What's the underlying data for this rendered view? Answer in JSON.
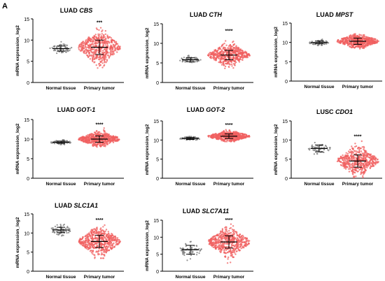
{
  "figure": {
    "panel_label": "A",
    "colors": {
      "normal": "#808080",
      "tumor": "#f06060",
      "axis": "#000000",
      "errorbar": "#000000"
    }
  },
  "chart_data": [
    {
      "type": "scatter",
      "title": "LUAD",
      "title_gene": "CBS",
      "ylabel": "mRNA expression_log2",
      "categories": [
        "Normal tissue",
        "Primary tumor"
      ],
      "ylim": [
        0,
        15
      ],
      "yticks": [
        0,
        5,
        10,
        15
      ],
      "series": [
        {
          "name": "Normal tissue",
          "n": 60,
          "mean": 8.0,
          "sd": 0.6,
          "min": 6.6,
          "max": 9.6
        },
        {
          "name": "Primary tumor",
          "n": 520,
          "mean": 8.3,
          "sd": 1.7,
          "min": 2.7,
          "max": 13.3
        }
      ],
      "significance": "***"
    },
    {
      "type": "scatter",
      "title": "LUAD",
      "title_gene": "CTH",
      "ylabel": "mRNA expression_log2",
      "categories": [
        "Normal tissue",
        "Primary tumor"
      ],
      "ylim": [
        0,
        15
      ],
      "yticks": [
        0,
        5,
        10,
        15
      ],
      "series": [
        {
          "name": "Normal tissue",
          "n": 60,
          "mean": 5.8,
          "sd": 0.5,
          "min": 4.8,
          "max": 7.0
        },
        {
          "name": "Primary tumor",
          "n": 520,
          "mean": 7.0,
          "sd": 1.2,
          "min": 3.6,
          "max": 12.2
        }
      ],
      "significance": "****"
    },
    {
      "type": "scatter",
      "title": "LUAD",
      "title_gene": "MPST",
      "ylabel": "mRNA expression_log2",
      "categories": [
        "Normal tissue",
        "Primary tumor"
      ],
      "ylim": [
        0,
        15
      ],
      "yticks": [
        0,
        5,
        10,
        15
      ],
      "series": [
        {
          "name": "Normal tissue",
          "n": 60,
          "mean": 10.0,
          "sd": 0.35,
          "min": 9.2,
          "max": 10.8
        },
        {
          "name": "Primary tumor",
          "n": 520,
          "mean": 10.3,
          "sd": 0.8,
          "min": 6.8,
          "max": 13.4
        }
      ],
      "significance": ""
    },
    {
      "type": "scatter",
      "title": "LUAD",
      "title_gene": "GOT-1",
      "ylabel": "mRNA expression_log2",
      "categories": [
        "Normal tissue",
        "Primary tumor"
      ],
      "ylim": [
        0,
        15
      ],
      "yticks": [
        0,
        5,
        10,
        15
      ],
      "series": [
        {
          "name": "Normal tissue",
          "n": 60,
          "mean": 9.2,
          "sd": 0.3,
          "min": 8.6,
          "max": 9.8
        },
        {
          "name": "Primary tumor",
          "n": 520,
          "mean": 10.0,
          "sd": 0.8,
          "min": 8.0,
          "max": 12.8
        }
      ],
      "significance": "****"
    },
    {
      "type": "scatter",
      "title": "LUAD",
      "title_gene": "GOT-2",
      "ylabel": "mRNA expression_log2",
      "categories": [
        "Normal tissue",
        "Primary tumor"
      ],
      "ylim": [
        0,
        15
      ],
      "yticks": [
        0,
        5,
        10,
        15
      ],
      "series": [
        {
          "name": "Normal tissue",
          "n": 60,
          "mean": 10.4,
          "sd": 0.25,
          "min": 9.9,
          "max": 10.9
        },
        {
          "name": "Primary tumor",
          "n": 520,
          "mean": 11.0,
          "sd": 0.6,
          "min": 9.6,
          "max": 13.0
        }
      ],
      "significance": "****"
    },
    {
      "type": "scatter",
      "title": "LUSC",
      "title_gene": "CDO1",
      "ylabel": "mRNA expression_log2",
      "categories": [
        "Normal tissue",
        "Primary tumor"
      ],
      "ylim": [
        0,
        15
      ],
      "yticks": [
        0,
        5,
        10,
        15
      ],
      "series": [
        {
          "name": "Normal tissue",
          "n": 50,
          "mean": 7.8,
          "sd": 0.9,
          "min": 5.8,
          "max": 9.8
        },
        {
          "name": "Primary tumor",
          "n": 500,
          "mean": 4.5,
          "sd": 1.6,
          "min": 0.2,
          "max": 10.0
        }
      ],
      "significance": "****"
    },
    {
      "type": "scatter",
      "title": "LUAD",
      "title_gene": "SLC1A1",
      "ylabel": "mRNA expression_log2",
      "categories": [
        "Normal tissue",
        "Primary tumor"
      ],
      "ylim": [
        0,
        15
      ],
      "yticks": [
        0,
        5,
        10,
        15
      ],
      "series": [
        {
          "name": "Normal tissue",
          "n": 60,
          "mean": 10.8,
          "sd": 0.7,
          "min": 9.2,
          "max": 12.4
        },
        {
          "name": "Primary tumor",
          "n": 520,
          "mean": 7.8,
          "sd": 1.6,
          "min": 3.4,
          "max": 12.4
        }
      ],
      "significance": "****"
    },
    {
      "type": "scatter",
      "title": "LUAD",
      "title_gene": "SLC7A11",
      "ylabel": "mRNA expression_log2",
      "categories": [
        "Normal tissue",
        "Primary tumor"
      ],
      "ylim": [
        0,
        15
      ],
      "yticks": [
        0,
        5,
        10,
        15
      ],
      "series": [
        {
          "name": "Normal tissue",
          "n": 60,
          "mean": 6.3,
          "sd": 1.3,
          "min": 3.2,
          "max": 10.4
        },
        {
          "name": "Primary tumor",
          "n": 520,
          "mean": 8.6,
          "sd": 1.8,
          "min": 2.4,
          "max": 14.0
        }
      ],
      "significance": "****"
    }
  ]
}
